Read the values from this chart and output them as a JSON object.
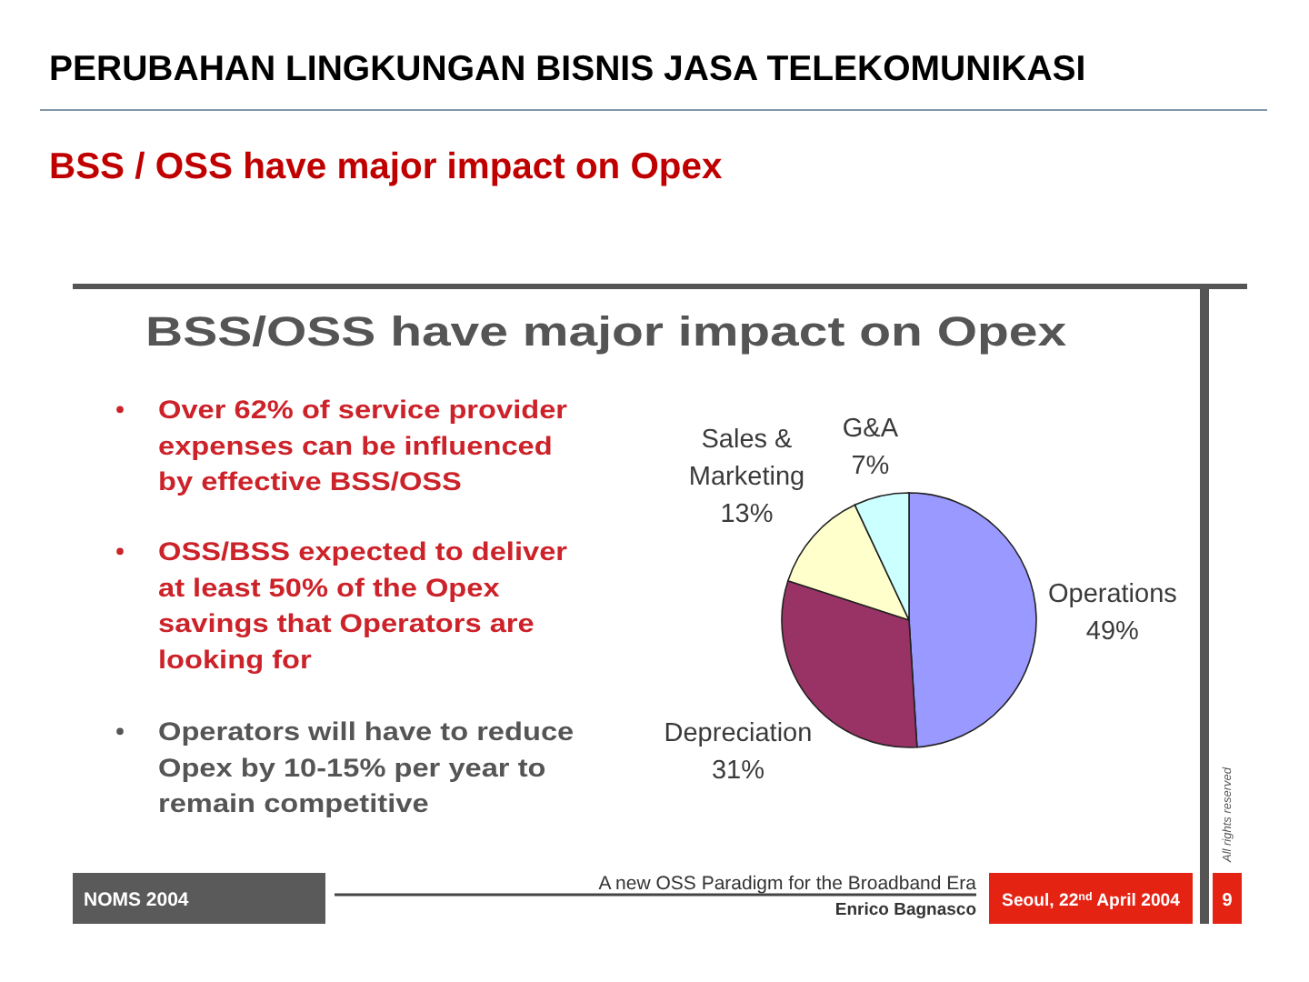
{
  "chart_data": {
    "type": "pie",
    "title": "PERUBAHAN LINGKUNGAN BISNIS JASA TELEKOMUNIKASI",
    "subtitle": "BSS / OSS have major impact on Opex",
    "categories": [
      "Operations",
      "Depreciation",
      "Sales & Marketing",
      "G&A"
    ],
    "values": [
      49,
      31,
      13,
      7
    ],
    "colors": [
      "#9999ff",
      "#993366",
      "#ffffcc",
      "#ccffff"
    ],
    "value_labels": [
      "49%",
      "31%",
      "13%",
      "7%"
    ],
    "annotations": [
      "BSS/OSS have major impact on Opex",
      "Over 62% of service provider expenses can be influenced by effective BSS/OSS",
      "OSS/BSS expected to deliver at least 50% of the Opex savings that Operators are looking for",
      "Operators will have to reduce Opex by 10-15% per year to remain competitive",
      "NOMS 2004",
      "A new OSS Paradigm for the Broadband Era",
      "Enrico Bagnasco",
      "Seoul, 22$^{nd}$ April 2004",
      "9",
      "All rights reserved"
    ]
  }
}
